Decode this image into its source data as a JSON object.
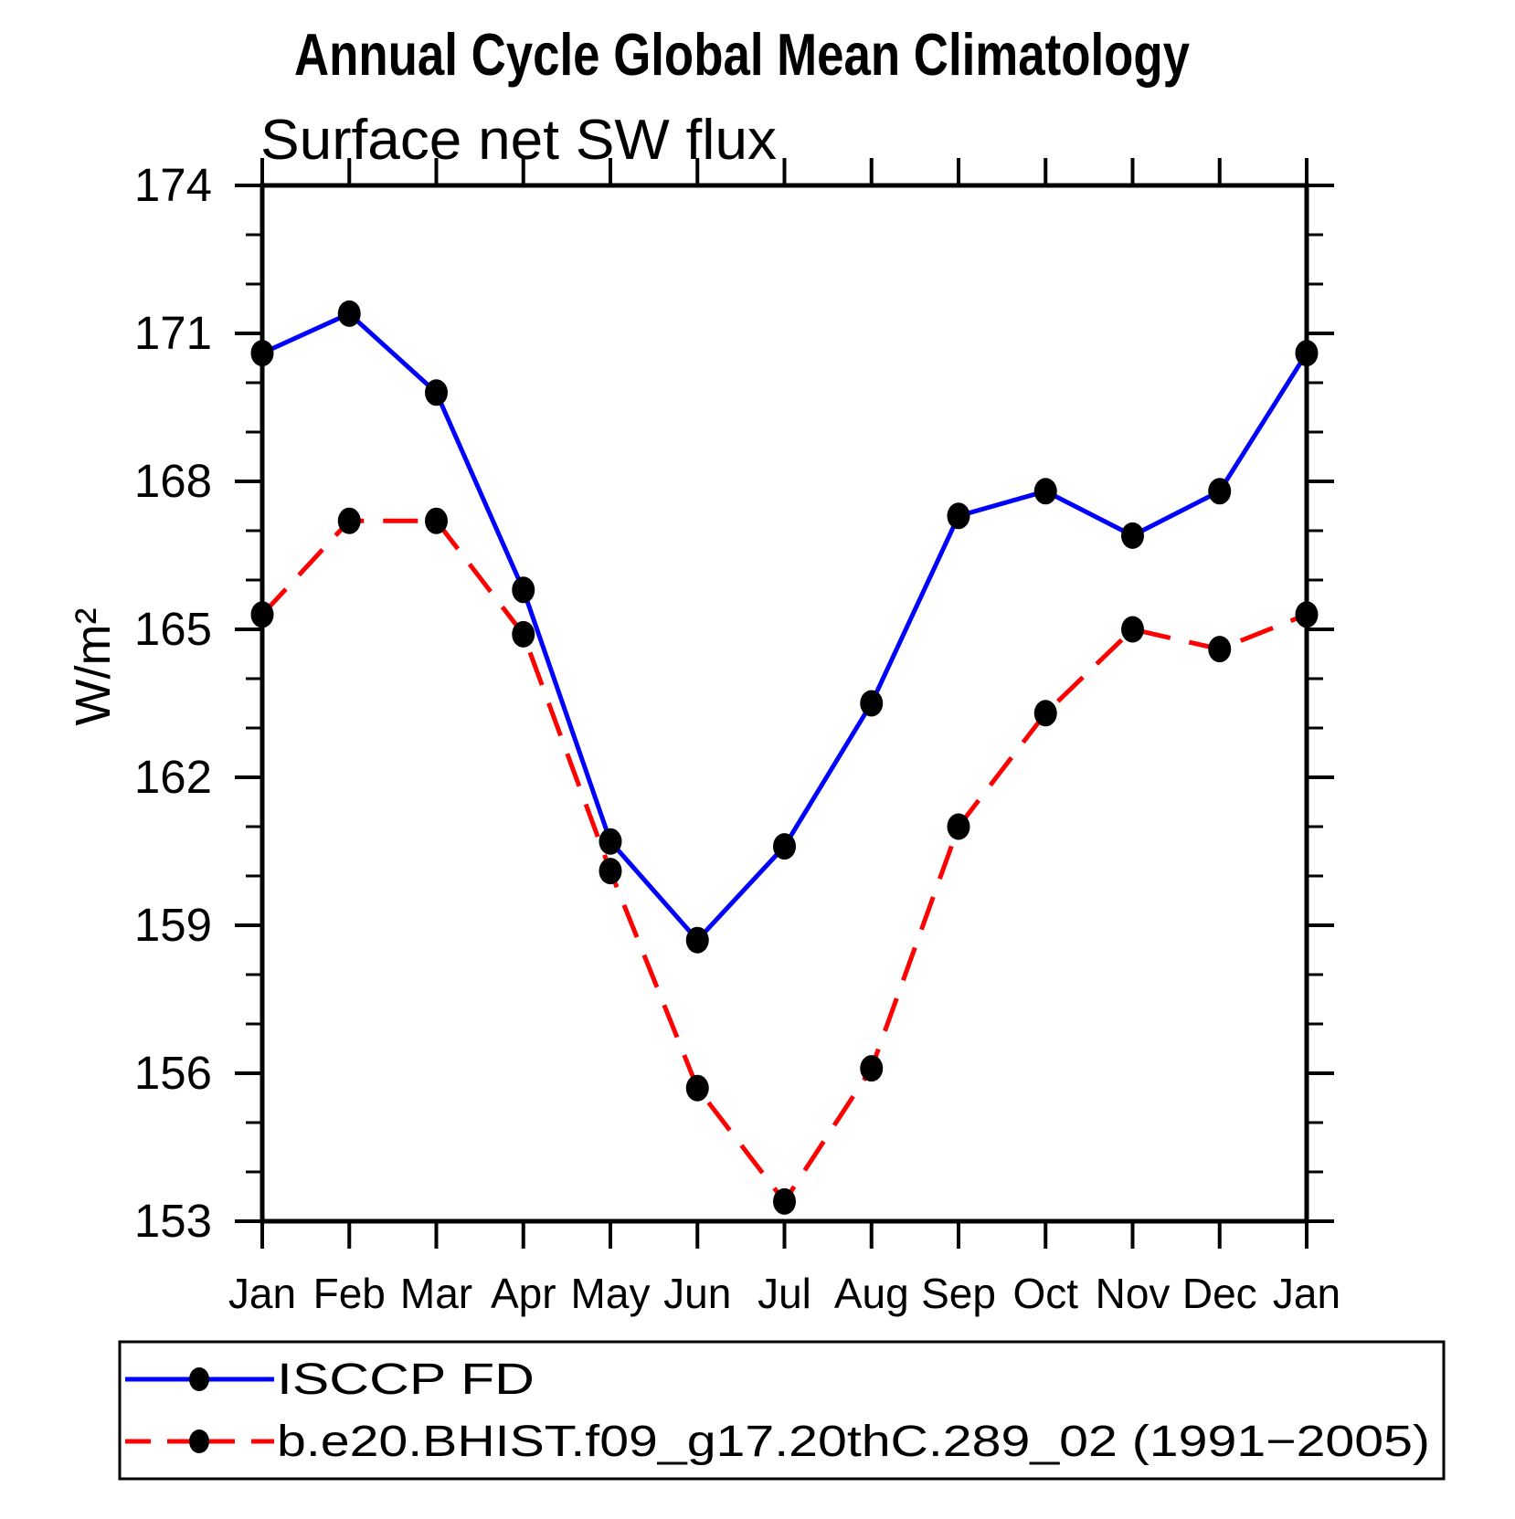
{
  "title": "Annual Cycle Global Mean Climatology",
  "subtitle": "Surface net SW flux",
  "chart_data": {
    "type": "line",
    "x_categories": [
      "Jan",
      "Feb",
      "Mar",
      "Apr",
      "May",
      "Jun",
      "Jul",
      "Aug",
      "Sep",
      "Oct",
      "Nov",
      "Dec",
      "Jan"
    ],
    "xlabel": "",
    "ylabel": "W/m²",
    "ylim": [
      153,
      174
    ],
    "y_major_ticks": [
      153,
      156,
      159,
      162,
      165,
      168,
      171,
      174
    ],
    "y_minor_step": 1,
    "grid": false,
    "legend_position": "bottom-box",
    "series": [
      {
        "name": "ISCCP FD",
        "color": "#0000ff",
        "line_style": "solid",
        "marker": "black-dot",
        "values": [
          170.6,
          171.4,
          169.8,
          165.8,
          160.7,
          158.7,
          160.6,
          163.5,
          167.3,
          167.8,
          166.9,
          167.8,
          170.6
        ]
      },
      {
        "name": "b.e20.BHIST.f09_g17.20thC.289_02 (1991−2005)",
        "color": "#ff0000",
        "line_style": "dashed",
        "marker": "black-dot",
        "values": [
          165.3,
          167.2,
          167.2,
          164.9,
          160.1,
          155.7,
          153.4,
          156.1,
          161.0,
          163.3,
          165.0,
          164.6,
          165.3
        ]
      }
    ]
  },
  "colors": {
    "axis": "#000000",
    "marker": "#000000",
    "background": "#ffffff",
    "series_blue": "#0000ff",
    "series_red": "#ff0000"
  }
}
